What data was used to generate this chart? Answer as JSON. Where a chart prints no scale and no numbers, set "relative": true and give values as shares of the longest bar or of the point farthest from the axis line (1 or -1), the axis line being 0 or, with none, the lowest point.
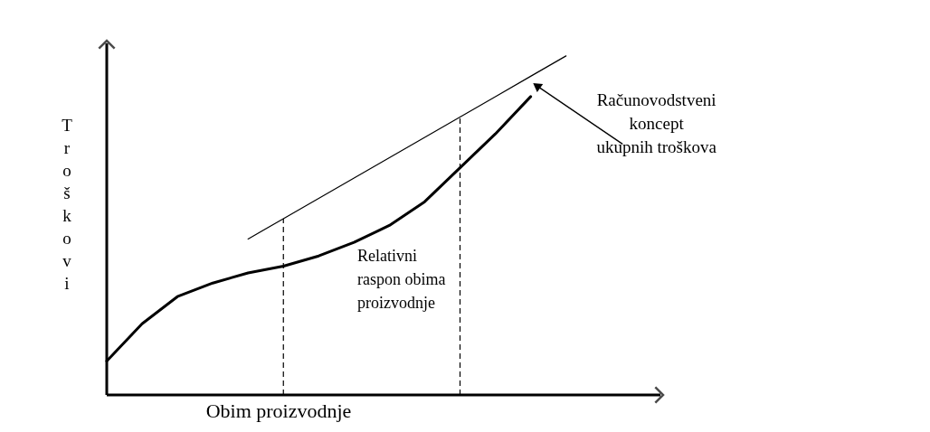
{
  "chart_data": {
    "type": "line",
    "relative": true,
    "xlabel": "Obim proizvodnje",
    "ylabel": "Troškovi",
    "categories": [
      null,
      null,
      null,
      null,
      null,
      null,
      null,
      null,
      null,
      null,
      null,
      null,
      null,
      null,
      null,
      null
    ],
    "series": [
      {
        "color": "#000000",
        "values": [
          0.1,
          0.21,
          0.29,
          0.33,
          0.36,
          0.38,
          0.41,
          0.45,
          0.5,
          0.57,
          0.67,
          0.77,
          0.88,
          null,
          null,
          null
        ]
      },
      {
        "name": "Računovodstveni koncept ukupnih troškova",
        "color": "#000000",
        "values": [
          null,
          null,
          null,
          null,
          0.46,
          0.52,
          0.58,
          0.64,
          0.7,
          0.76,
          0.82,
          0.88,
          0.94,
          1.0,
          null,
          null
        ]
      }
    ],
    "annotations": [
      "Relativni\nraspon obima\nproizvodnje"
    ]
  }
}
